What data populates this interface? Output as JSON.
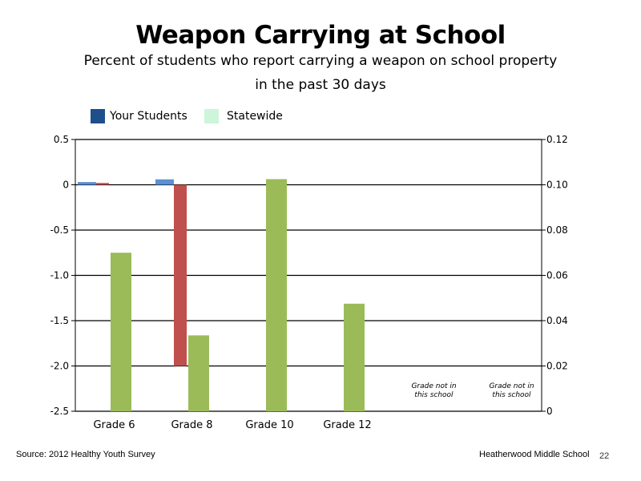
{
  "header": {
    "title": "Weapon Carrying at School",
    "subtitle_line1": "Percent of students who report carrying a weapon on school property",
    "subtitle_line2": "in the past 30 days"
  },
  "legend": [
    {
      "label": "Your Students",
      "color": "#1f4e8c"
    },
    {
      "label": "Statewide",
      "color": "#ccf5d9"
    }
  ],
  "chart_data": {
    "type": "bar",
    "categories": [
      "Grade 6",
      "Grade 8",
      "Grade 10",
      "Grade 12",
      "",
      ""
    ],
    "left_axis": {
      "ticks": [
        "0.5",
        "0",
        "-0.5",
        "-1.0",
        "-1.5",
        "-2.0",
        "-2.5"
      ],
      "values": [
        0.5,
        0,
        -0.5,
        -1.0,
        -1.5,
        -2.0,
        -2.5
      ],
      "ylim": [
        -2.5,
        0.5
      ]
    },
    "right_axis": {
      "ticks": [
        "0.12",
        "0.10",
        "0.08",
        "0.06",
        "0.04",
        "0.02",
        "0"
      ],
      "values": [
        0.12,
        0.1,
        0.08,
        0.06,
        0.04,
        0.02,
        0
      ],
      "ylim": [
        0,
        0.12
      ]
    },
    "series": [
      {
        "axis": "left",
        "color": "#5b8fd6",
        "values": [
          0.03,
          0.06,
          null,
          null,
          null,
          null
        ]
      },
      {
        "axis": "left",
        "color": "#c0504d",
        "values": [
          0.02,
          -2.0,
          null,
          null,
          null,
          null
        ]
      },
      {
        "axis": "right",
        "color": "#9bbb59",
        "values": [
          0.07,
          0.0335,
          0.1025,
          0.0475,
          null,
          null
        ]
      }
    ],
    "annotations": [
      {
        "category_index": 4,
        "line1": "Grade not in",
        "line2": "this school"
      },
      {
        "category_index": 5,
        "line1": "Grade not in",
        "line2": "this school"
      }
    ],
    "grid": true
  },
  "footer": {
    "source": "Source: 2012 Healthy Youth Survey",
    "school": "Heatherwood Middle  School",
    "page": "22"
  }
}
